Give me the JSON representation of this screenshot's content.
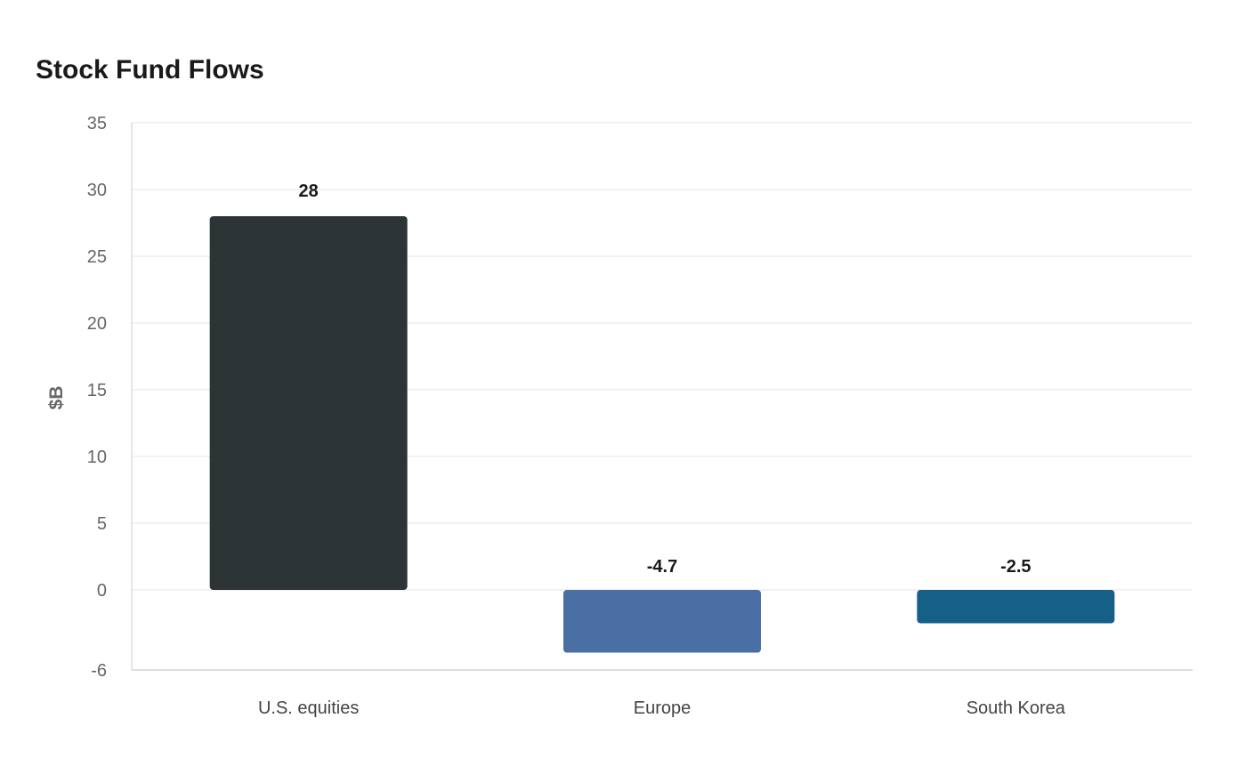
{
  "chart_data": {
    "type": "bar",
    "title": "Stock Fund Flows",
    "xlabel": "",
    "ylabel": "$B",
    "categories": [
      "U.S. equities",
      "Europe",
      "South Korea"
    ],
    "values": [
      28,
      -4.7,
      -2.5
    ],
    "data_labels": [
      "28",
      "-4.7",
      "-2.5"
    ],
    "colors": [
      "#2d3436",
      "#4a6fa5",
      "#166088"
    ],
    "ylim": [
      -6,
      35
    ],
    "yticks": [
      -6,
      0,
      5,
      10,
      15,
      20,
      25,
      30,
      35
    ],
    "grid": true,
    "legend": "none"
  }
}
